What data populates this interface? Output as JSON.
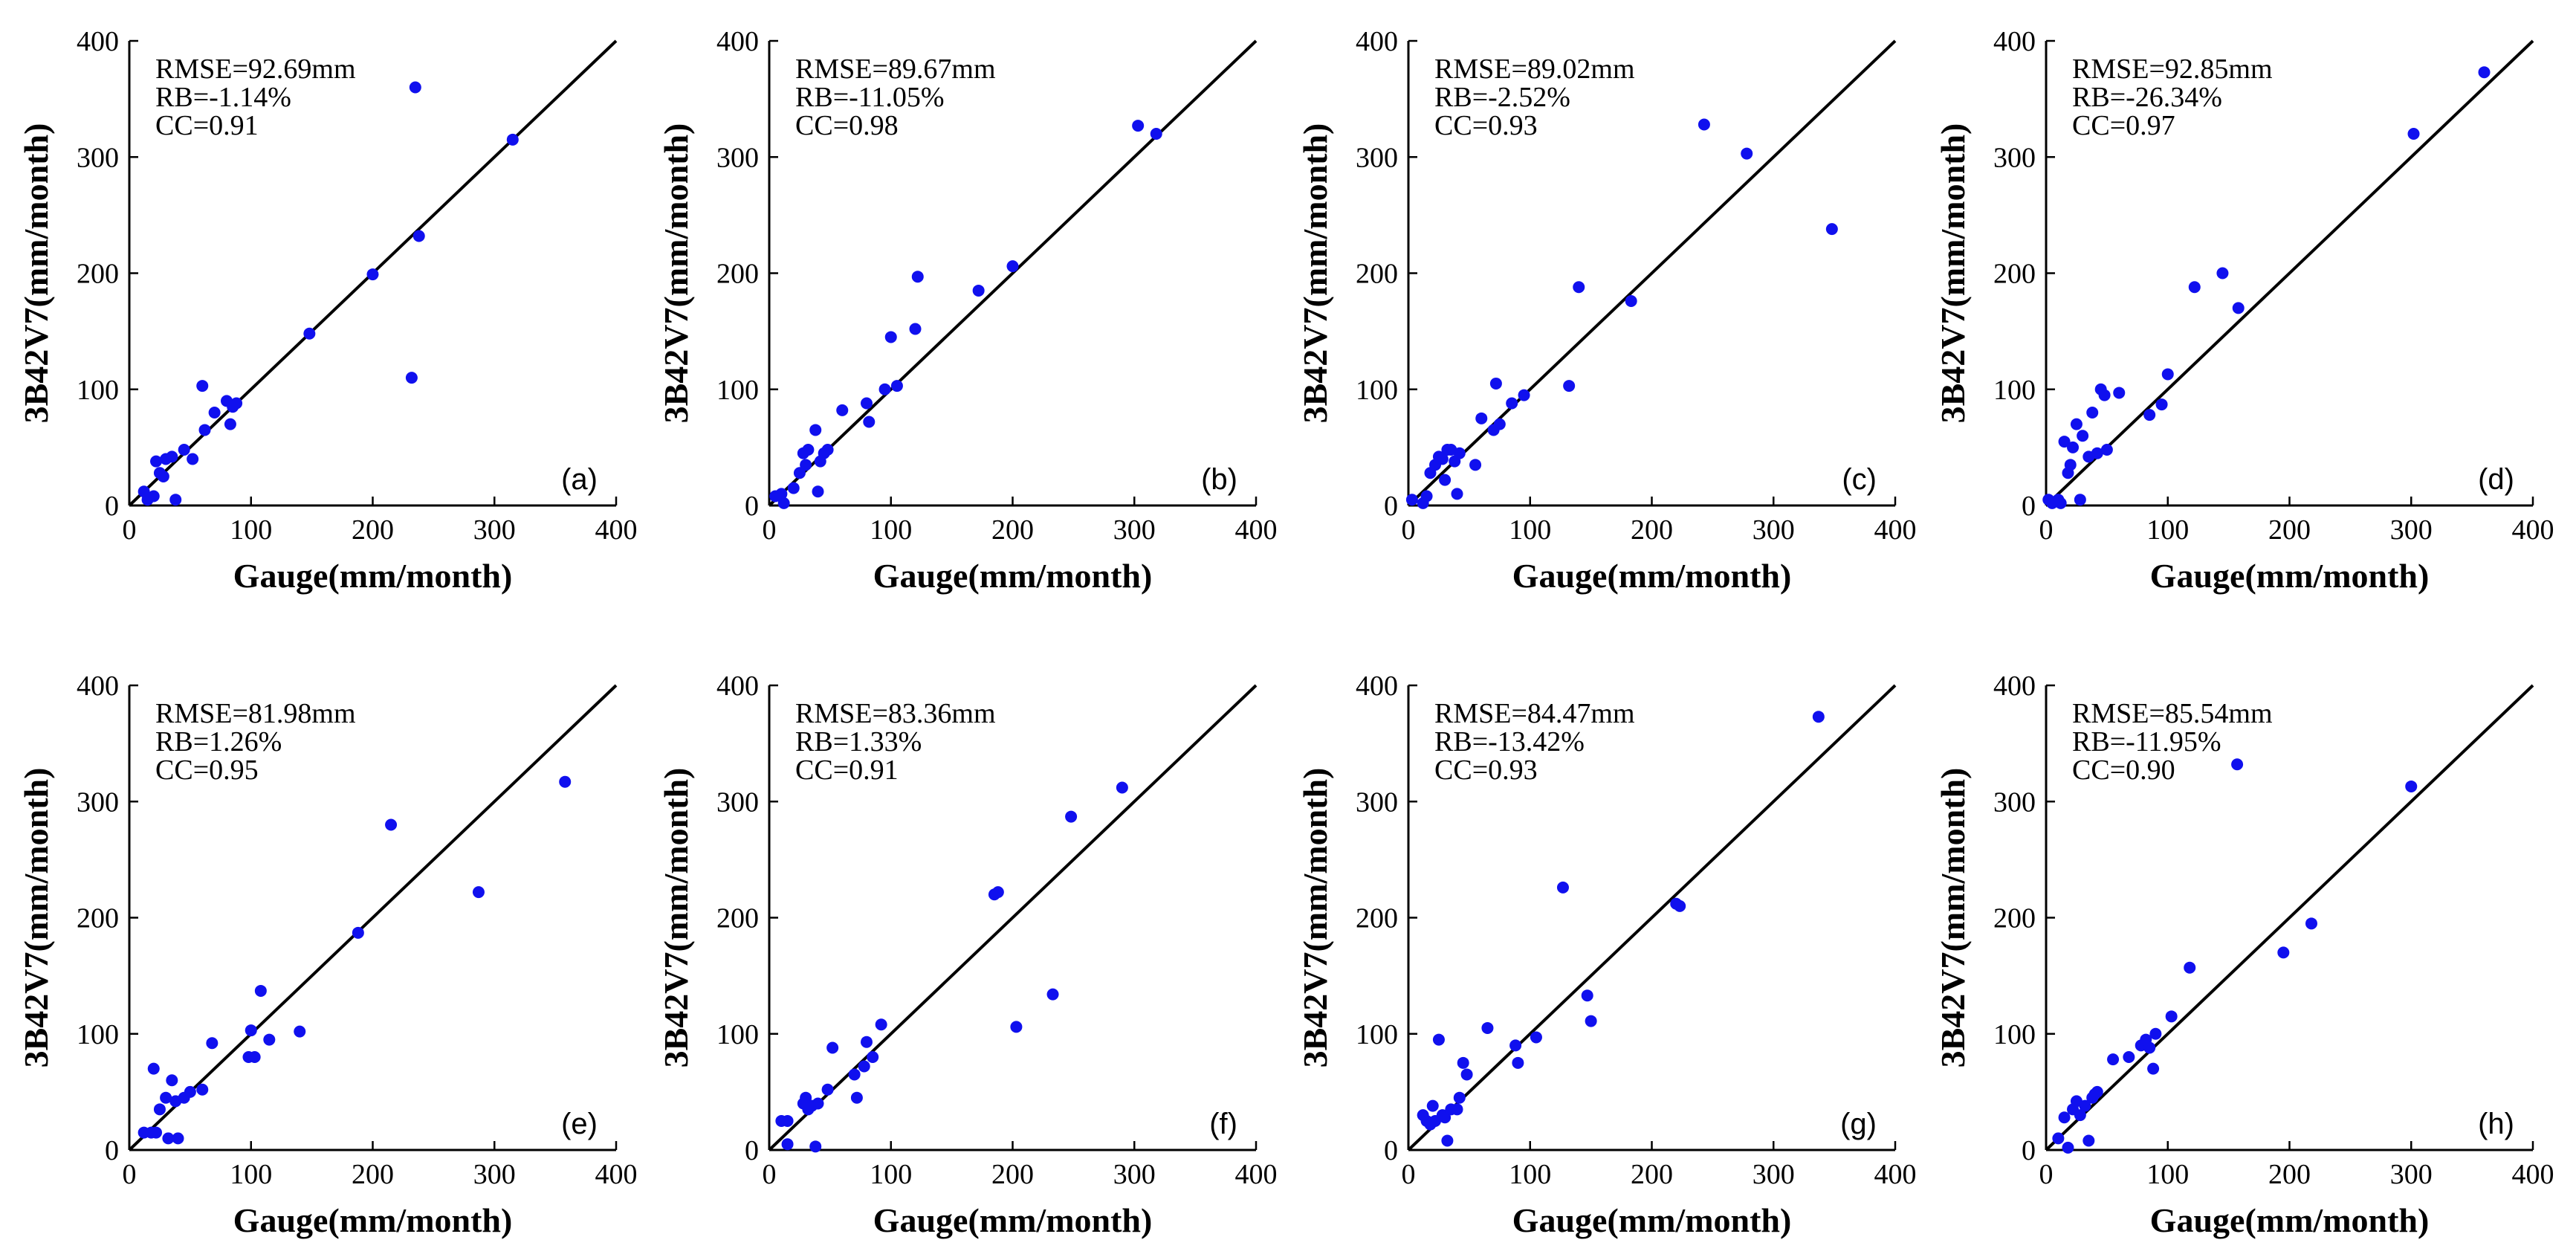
{
  "chart_data": [
    {
      "type": "scatter",
      "panel_label": "(a)",
      "xlabel": "Gauge(mm/month)",
      "ylabel": "3B42V7(mm/month)",
      "xlim": [
        0,
        400
      ],
      "ylim": [
        0,
        400
      ],
      "xticks": [
        "0",
        "100",
        "200",
        "300",
        "400"
      ],
      "yticks": [
        "0",
        "100",
        "200",
        "300",
        "400"
      ],
      "reference_line": "1:1",
      "stats": [
        "RMSE=92.69mm",
        "RB=-1.14%",
        "CC=0.91"
      ],
      "points": [
        [
          12,
          12
        ],
        [
          15,
          5
        ],
        [
          20,
          8
        ],
        [
          22,
          38
        ],
        [
          25,
          28
        ],
        [
          28,
          25
        ],
        [
          30,
          40
        ],
        [
          35,
          42
        ],
        [
          38,
          5
        ],
        [
          45,
          48
        ],
        [
          52,
          40
        ],
        [
          60,
          103
        ],
        [
          62,
          65
        ],
        [
          70,
          80
        ],
        [
          80,
          90
        ],
        [
          83,
          70
        ],
        [
          85,
          85
        ],
        [
          88,
          88
        ],
        [
          148,
          148
        ],
        [
          200,
          199
        ],
        [
          232,
          110
        ],
        [
          235,
          360
        ],
        [
          238,
          232
        ],
        [
          315,
          315
        ]
      ]
    },
    {
      "type": "scatter",
      "panel_label": "(b)",
      "xlabel": "Gauge(mm/month)",
      "ylabel": "3B42V7(mm/month)",
      "xlim": [
        0,
        400
      ],
      "ylim": [
        0,
        400
      ],
      "xticks": [
        "0",
        "100",
        "200",
        "300",
        "400"
      ],
      "yticks": [
        "0",
        "100",
        "200",
        "300",
        "400"
      ],
      "reference_line": "1:1",
      "stats": [
        "RMSE=89.67mm",
        "RB=-11.05%",
        "CC=0.98"
      ],
      "points": [
        [
          5,
          8
        ],
        [
          10,
          10
        ],
        [
          12,
          2
        ],
        [
          20,
          15
        ],
        [
          25,
          28
        ],
        [
          28,
          45
        ],
        [
          30,
          35
        ],
        [
          32,
          48
        ],
        [
          38,
          65
        ],
        [
          40,
          12
        ],
        [
          42,
          38
        ],
        [
          45,
          45
        ],
        [
          48,
          48
        ],
        [
          60,
          82
        ],
        [
          80,
          88
        ],
        [
          82,
          72
        ],
        [
          95,
          100
        ],
        [
          100,
          145
        ],
        [
          105,
          103
        ],
        [
          120,
          152
        ],
        [
          122,
          197
        ],
        [
          172,
          185
        ],
        [
          200,
          206
        ],
        [
          303,
          327
        ],
        [
          318,
          320
        ]
      ]
    },
    {
      "type": "scatter",
      "panel_label": "(c)",
      "xlabel": "Gauge(mm/month)",
      "ylabel": "3B42V7(mm/month)",
      "xlim": [
        0,
        400
      ],
      "ylim": [
        0,
        400
      ],
      "xticks": [
        "0",
        "100",
        "200",
        "300",
        "400"
      ],
      "yticks": [
        "0",
        "100",
        "200",
        "300",
        "400"
      ],
      "reference_line": "1:1",
      "stats": [
        "RMSE=89.02mm",
        "RB=-2.52%",
        "CC=0.93"
      ],
      "points": [
        [
          3,
          5
        ],
        [
          12,
          2
        ],
        [
          15,
          8
        ],
        [
          18,
          28
        ],
        [
          22,
          35
        ],
        [
          25,
          42
        ],
        [
          28,
          40
        ],
        [
          30,
          22
        ],
        [
          32,
          48
        ],
        [
          35,
          48
        ],
        [
          38,
          38
        ],
        [
          40,
          10
        ],
        [
          42,
          45
        ],
        [
          55,
          35
        ],
        [
          60,
          75
        ],
        [
          70,
          65
        ],
        [
          72,
          105
        ],
        [
          75,
          70
        ],
        [
          85,
          88
        ],
        [
          95,
          95
        ],
        [
          132,
          103
        ],
        [
          140,
          188
        ],
        [
          183,
          176
        ],
        [
          243,
          328
        ],
        [
          278,
          303
        ],
        [
          348,
          238
        ]
      ]
    },
    {
      "type": "scatter",
      "panel_label": "(d)",
      "xlabel": "Gauge(mm/month)",
      "ylabel": "3B42V7(mm/month)",
      "xlim": [
        0,
        400
      ],
      "ylim": [
        0,
        400
      ],
      "xticks": [
        "0",
        "100",
        "200",
        "300",
        "400"
      ],
      "yticks": [
        "0",
        "100",
        "200",
        "300",
        "400"
      ],
      "reference_line": "1:1",
      "stats": [
        "RMSE=92.85mm",
        "RB=-26.34%",
        "CC=0.97"
      ],
      "points": [
        [
          2,
          5
        ],
        [
          5,
          2
        ],
        [
          10,
          5
        ],
        [
          12,
          2
        ],
        [
          15,
          55
        ],
        [
          18,
          28
        ],
        [
          20,
          35
        ],
        [
          22,
          50
        ],
        [
          25,
          70
        ],
        [
          28,
          5
        ],
        [
          30,
          60
        ],
        [
          35,
          42
        ],
        [
          38,
          80
        ],
        [
          42,
          45
        ],
        [
          45,
          100
        ],
        [
          48,
          95
        ],
        [
          50,
          48
        ],
        [
          60,
          97
        ],
        [
          85,
          78
        ],
        [
          95,
          87
        ],
        [
          100,
          113
        ],
        [
          122,
          188
        ],
        [
          145,
          200
        ],
        [
          158,
          170
        ],
        [
          302,
          320
        ],
        [
          360,
          373
        ]
      ]
    },
    {
      "type": "scatter",
      "panel_label": "(e)",
      "xlabel": "Gauge(mm/month)",
      "ylabel": "3B42V7(mm/month)",
      "xlim": [
        0,
        400
      ],
      "ylim": [
        0,
        400
      ],
      "xticks": [
        "0",
        "100",
        "200",
        "300",
        "400"
      ],
      "yticks": [
        "0",
        "100",
        "200",
        "300",
        "400"
      ],
      "reference_line": "1:1",
      "stats": [
        "RMSE=81.98mm",
        "RB=1.26%",
        "CC=0.95"
      ],
      "points": [
        [
          12,
          15
        ],
        [
          18,
          15
        ],
        [
          20,
          70
        ],
        [
          22,
          15
        ],
        [
          25,
          35
        ],
        [
          30,
          45
        ],
        [
          32,
          10
        ],
        [
          35,
          60
        ],
        [
          38,
          42
        ],
        [
          40,
          10
        ],
        [
          45,
          45
        ],
        [
          50,
          50
        ],
        [
          60,
          52
        ],
        [
          68,
          92
        ],
        [
          98,
          80
        ],
        [
          100,
          103
        ],
        [
          103,
          80
        ],
        [
          108,
          137
        ],
        [
          115,
          95
        ],
        [
          140,
          102
        ],
        [
          188,
          187
        ],
        [
          215,
          280
        ],
        [
          287,
          222
        ],
        [
          358,
          317
        ]
      ]
    },
    {
      "type": "scatter",
      "panel_label": "(f)",
      "xlabel": "Gauge(mm/month)",
      "ylabel": "3B42V7(mm/month)",
      "xlim": [
        0,
        400
      ],
      "ylim": [
        0,
        400
      ],
      "xticks": [
        "0",
        "100",
        "200",
        "300",
        "400"
      ],
      "yticks": [
        "0",
        "100",
        "200",
        "300",
        "400"
      ],
      "reference_line": "1:1",
      "stats": [
        "RMSE=83.36mm",
        "RB=1.33%",
        "CC=0.91"
      ],
      "points": [
        [
          10,
          25
        ],
        [
          15,
          25
        ],
        [
          15,
          5
        ],
        [
          28,
          40
        ],
        [
          30,
          45
        ],
        [
          32,
          35
        ],
        [
          35,
          38
        ],
        [
          38,
          3
        ],
        [
          40,
          40
        ],
        [
          48,
          52
        ],
        [
          52,
          88
        ],
        [
          70,
          65
        ],
        [
          72,
          45
        ],
        [
          78,
          72
        ],
        [
          80,
          93
        ],
        [
          85,
          80
        ],
        [
          92,
          108
        ],
        [
          185,
          220
        ],
        [
          188,
          222
        ],
        [
          203,
          106
        ],
        [
          233,
          134
        ],
        [
          248,
          287
        ],
        [
          290,
          312
        ]
      ]
    },
    {
      "type": "scatter",
      "panel_label": "(g)",
      "xlabel": "Gauge(mm/month)",
      "ylabel": "3B42V7(mm/month)",
      "xlim": [
        0,
        400
      ],
      "ylim": [
        0,
        400
      ],
      "xticks": [
        "0",
        "100",
        "200",
        "300",
        "400"
      ],
      "yticks": [
        "0",
        "100",
        "200",
        "300",
        "400"
      ],
      "reference_line": "1:1",
      "stats": [
        "RMSE=84.47mm",
        "RB=-13.42%",
        "CC=0.93"
      ],
      "points": [
        [
          12,
          30
        ],
        [
          15,
          25
        ],
        [
          18,
          22
        ],
        [
          20,
          38
        ],
        [
          22,
          25
        ],
        [
          25,
          95
        ],
        [
          28,
          30
        ],
        [
          30,
          28
        ],
        [
          32,
          8
        ],
        [
          35,
          35
        ],
        [
          40,
          35
        ],
        [
          42,
          45
        ],
        [
          45,
          75
        ],
        [
          48,
          65
        ],
        [
          65,
          105
        ],
        [
          88,
          90
        ],
        [
          90,
          75
        ],
        [
          105,
          97
        ],
        [
          127,
          226
        ],
        [
          147,
          133
        ],
        [
          150,
          111
        ],
        [
          220,
          212
        ],
        [
          223,
          210
        ],
        [
          337,
          373
        ]
      ]
    },
    {
      "type": "scatter",
      "panel_label": "(h)",
      "xlabel": "Gauge(mm/month)",
      "ylabel": "3B42V7(mm/month)",
      "xlim": [
        0,
        400
      ],
      "ylim": [
        0,
        400
      ],
      "xticks": [
        "0",
        "100",
        "200",
        "300",
        "400"
      ],
      "yticks": [
        "0",
        "100",
        "200",
        "300",
        "400"
      ],
      "reference_line": "1:1",
      "stats": [
        "RMSE=85.54mm",
        "RB=-11.95%",
        "CC=0.90"
      ],
      "points": [
        [
          10,
          10
        ],
        [
          15,
          28
        ],
        [
          18,
          2
        ],
        [
          22,
          35
        ],
        [
          25,
          42
        ],
        [
          28,
          30
        ],
        [
          32,
          38
        ],
        [
          35,
          8
        ],
        [
          38,
          45
        ],
        [
          40,
          48
        ],
        [
          42,
          50
        ],
        [
          55,
          78
        ],
        [
          68,
          80
        ],
        [
          78,
          90
        ],
        [
          82,
          95
        ],
        [
          85,
          88
        ],
        [
          88,
          70
        ],
        [
          90,
          100
        ],
        [
          103,
          115
        ],
        [
          118,
          157
        ],
        [
          157,
          332
        ],
        [
          195,
          170
        ],
        [
          218,
          195
        ],
        [
          300,
          313
        ]
      ]
    }
  ]
}
